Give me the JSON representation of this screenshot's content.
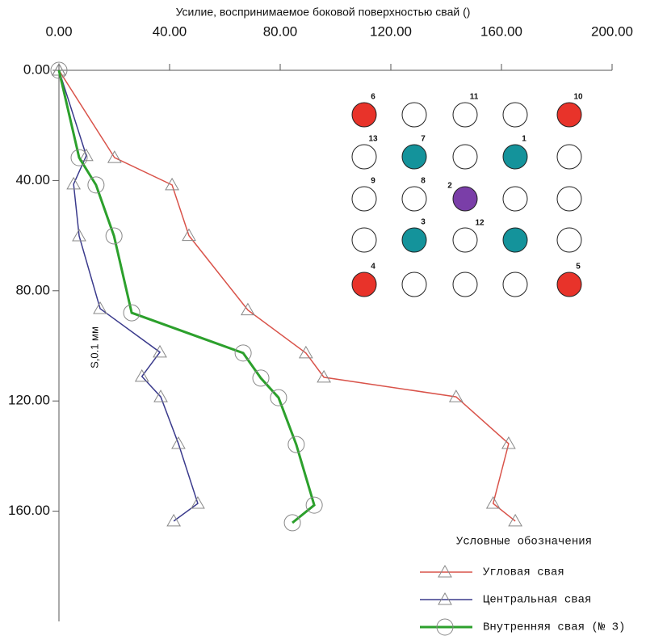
{
  "chart_data": {
    "type": "line",
    "title": "Усилие, воспринимаемое боковой поверхностью свай ()",
    "y_annotation": "S,0.1 мм",
    "legend_title": "Условные обозначения",
    "xlim": [
      0,
      200
    ],
    "xticks": [
      {
        "value": 0,
        "label": "0.00"
      },
      {
        "value": 40,
        "label": "40.00"
      },
      {
        "value": 80,
        "label": "80.00"
      },
      {
        "value": 120,
        "label": "120.00"
      },
      {
        "value": 160,
        "label": "160.00"
      },
      {
        "value": 200,
        "label": "200.00"
      }
    ],
    "ylim": [
      0,
      200
    ],
    "yticks": [
      {
        "value": 0,
        "label": "0.00"
      },
      {
        "value": 40,
        "label": "40.00"
      },
      {
        "value": 80,
        "label": "80.00"
      },
      {
        "value": 120,
        "label": "120.00"
      },
      {
        "value": 160,
        "label": "160.00"
      }
    ],
    "series": [
      {
        "name": "Угловая свая",
        "color": "#d9534a",
        "marker": "triangle",
        "x": [
          0,
          20.1,
          40.9,
          47,
          68.3,
          89.3,
          95.8,
          143.6,
          162.6,
          157,
          165
        ],
        "values": [
          0,
          31.7,
          41.6,
          60,
          87,
          102.6,
          111.4,
          118.5,
          135.5,
          157.2,
          163.6
        ]
      },
      {
        "name": "Центральная свая",
        "color": "#3a3a8c",
        "marker": "triangle",
        "x": [
          0,
          9.9,
          5.3,
          7.3,
          14.9,
          36.5,
          30,
          36.8,
          43.2,
          50.2,
          41.5
        ],
        "values": [
          0,
          31,
          41.3,
          60.1,
          86.5,
          102.3,
          111.1,
          118.5,
          135.5,
          157.2,
          163.6
        ]
      },
      {
        "name": "Внутренняя свая (№ 3)",
        "color": "#2ca02c",
        "marker": "circle",
        "x": [
          0,
          7.3,
          13.4,
          19.9,
          26.3,
          66.6,
          73,
          79.4,
          85.8,
          92.3,
          84.4
        ],
        "values": [
          0,
          31.7,
          41.6,
          60.1,
          88,
          102.6,
          111.7,
          118.8,
          135.8,
          157.8,
          164.2
        ]
      }
    ],
    "inset": [
      {
        "label": "6",
        "color": "#e8332a"
      },
      {
        "color": "#ffffff"
      },
      {
        "label": "11",
        "color": "#ffffff"
      },
      {
        "color": "#ffffff"
      },
      {
        "label": "10",
        "color": "#e8332a"
      },
      {
        "label": "13",
        "color": "#ffffff"
      },
      {
        "label": "7",
        "color": "#14939b"
      },
      {
        "color": "#ffffff"
      },
      {
        "label": "1",
        "color": "#14939b"
      },
      {
        "color": "#ffffff"
      },
      {
        "label": "9",
        "color": "#ffffff"
      },
      {
        "label": "8",
        "color": "#ffffff"
      },
      {
        "label": "2",
        "color": "#7a3ea8"
      },
      {
        "color": "#ffffff"
      },
      {
        "color": "#ffffff"
      },
      {
        "color": "#ffffff"
      },
      {
        "label": "3",
        "color": "#14939b"
      },
      {
        "label": "12",
        "color": "#ffffff"
      },
      {
        "color": "#14939b"
      },
      {
        "color": "#ffffff"
      },
      {
        "label": "4",
        "color": "#e8332a"
      },
      {
        "color": "#ffffff"
      },
      {
        "color": "#ffffff"
      },
      {
        "color": "#ffffff"
      },
      {
        "label": "5",
        "color": "#e8332a"
      }
    ]
  }
}
